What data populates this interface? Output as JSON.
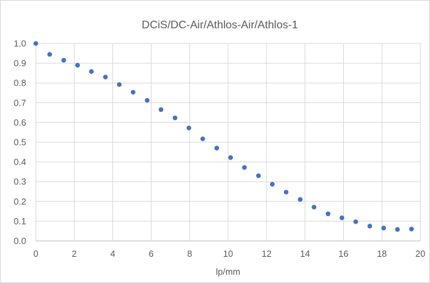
{
  "chart_data": {
    "type": "scatter",
    "title": "DCiS/DC-Air/Athlos-Air/Athlos-1",
    "xlabel": "lp/mm",
    "ylabel": "",
    "xlim": [
      0,
      20
    ],
    "ylim": [
      0,
      1.0
    ],
    "x_ticks": [
      0,
      2,
      4,
      6,
      8,
      10,
      12,
      14,
      16,
      18,
      20
    ],
    "y_ticks": [
      "0.0",
      "0.1",
      "0.2",
      "0.3",
      "0.4",
      "0.5",
      "0.6",
      "0.7",
      "0.8",
      "0.9",
      "1.0"
    ],
    "grid": true,
    "marker_color": "#4472c4",
    "series": [
      {
        "points": [
          [
            0.0,
            1.0
          ],
          [
            0.72,
            0.945
          ],
          [
            1.45,
            0.915
          ],
          [
            2.17,
            0.89
          ],
          [
            2.89,
            0.858
          ],
          [
            3.62,
            0.83
          ],
          [
            4.34,
            0.792
          ],
          [
            5.06,
            0.753
          ],
          [
            5.79,
            0.712
          ],
          [
            6.51,
            0.665
          ],
          [
            7.24,
            0.623
          ],
          [
            7.96,
            0.572
          ],
          [
            8.68,
            0.517
          ],
          [
            9.41,
            0.47
          ],
          [
            10.13,
            0.422
          ],
          [
            10.85,
            0.372
          ],
          [
            11.58,
            0.33
          ],
          [
            12.3,
            0.287
          ],
          [
            13.02,
            0.247
          ],
          [
            13.75,
            0.21
          ],
          [
            14.47,
            0.171
          ],
          [
            15.2,
            0.137
          ],
          [
            15.92,
            0.117
          ],
          [
            16.64,
            0.097
          ],
          [
            17.37,
            0.075
          ],
          [
            18.09,
            0.065
          ],
          [
            18.81,
            0.058
          ],
          [
            19.54,
            0.06
          ]
        ]
      }
    ]
  }
}
